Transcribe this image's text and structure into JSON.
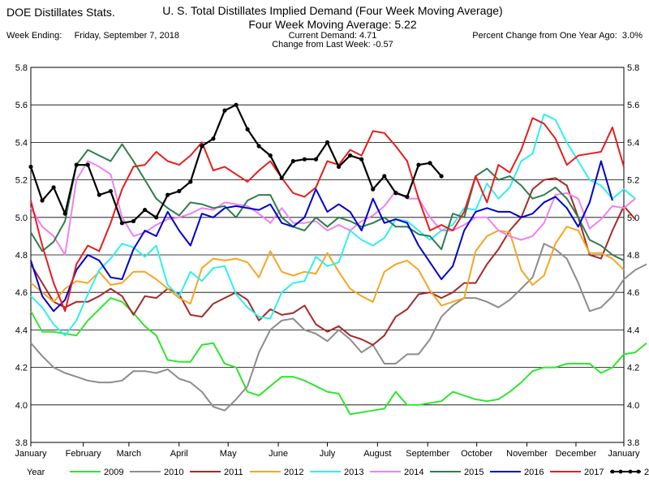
{
  "header": {
    "brand": "DOE Distillates Stats.",
    "title": "U. S. Total Distillates Implied Demand  (Four Week Moving Average)",
    "subtitle": "Four Week Moving Average:  5.22",
    "week_label": "Week Ending:",
    "week_value": "Friday, September 7, 2018",
    "current_demand": "Current Demand:  4.71",
    "change": "Change from Last Week: -0.57",
    "pct_label": "Percent Change from One Year Ago:",
    "pct_value": "3.0%"
  },
  "chart_data": {
    "type": "line",
    "x_unit": "week of year",
    "xlim": [
      1,
      53
    ],
    "ylim": [
      3.8,
      5.8
    ],
    "y_ticks": [
      "3.8",
      "4.0",
      "4.2",
      "4.4",
      "4.6",
      "4.8",
      "5.0",
      "5.2",
      "5.4",
      "5.6",
      "5.8"
    ],
    "x_ticks": [
      {
        "label": "January",
        "week": 1
      },
      {
        "label": "February",
        "week": 5.6
      },
      {
        "label": "March",
        "week": 9.6
      },
      {
        "label": "April",
        "week": 14
      },
      {
        "label": "May",
        "week": 18.3
      },
      {
        "label": "June",
        "week": 22.7
      },
      {
        "label": "July",
        "week": 27
      },
      {
        "label": "August",
        "week": 31.4
      },
      {
        "label": "September",
        "week": 35.8
      },
      {
        "label": "October",
        "week": 40.1
      },
      {
        "label": "November",
        "week": 44.5
      },
      {
        "label": "December",
        "week": 48.8
      },
      {
        "label": "January",
        "week": 53
      }
    ],
    "grid": "horizontal",
    "legend_position": "bottom",
    "legend_title": "Year",
    "series": [
      {
        "name": "2009",
        "color": "#2ee62e",
        "markers": false,
        "values": [
          4.5,
          4.39,
          4.39,
          4.38,
          4.37,
          4.45,
          4.51,
          4.57,
          4.55,
          4.49,
          4.42,
          4.37,
          4.24,
          4.23,
          4.23,
          4.32,
          4.33,
          4.22,
          4.2,
          4.07,
          4.05,
          4.1,
          4.15,
          4.15,
          4.13,
          4.1,
          4.07,
          4.06,
          3.95,
          3.96,
          3.97,
          3.98,
          4.07,
          4.0,
          4.0,
          4.01,
          4.02,
          4.07,
          4.05,
          4.03,
          4.02,
          4.03,
          4.07,
          4.12,
          4.18,
          4.2,
          4.2,
          4.22,
          4.22,
          4.22,
          4.17,
          4.2,
          4.27,
          4.28,
          4.33
        ]
      },
      {
        "name": "2010",
        "color": "#8c8c8c",
        "markers": false,
        "values": [
          4.33,
          4.26,
          4.2,
          4.17,
          4.15,
          4.13,
          4.12,
          4.12,
          4.13,
          4.18,
          4.18,
          4.17,
          4.19,
          4.14,
          4.12,
          4.07,
          3.99,
          3.97,
          4.03,
          4.1,
          4.28,
          4.4,
          4.45,
          4.46,
          4.4,
          4.38,
          4.34,
          4.4,
          4.35,
          4.28,
          4.32,
          4.22,
          4.22,
          4.27,
          4.27,
          4.35,
          4.47,
          4.53,
          4.57,
          4.57,
          4.55,
          4.52,
          4.56,
          4.62,
          4.68,
          4.86,
          4.83,
          4.78,
          4.65,
          4.5,
          4.52,
          4.58,
          4.67,
          4.72,
          4.75
        ]
      },
      {
        "name": "2011",
        "color": "#a52a2a",
        "markers": false,
        "values": [
          4.75,
          4.65,
          4.55,
          4.52,
          4.55,
          4.55,
          4.58,
          4.62,
          4.58,
          4.48,
          4.58,
          4.57,
          4.62,
          4.59,
          4.48,
          4.47,
          4.54,
          4.57,
          4.6,
          4.56,
          4.45,
          4.51,
          4.48,
          4.49,
          4.53,
          4.43,
          4.39,
          4.42,
          4.37,
          4.35,
          4.32,
          4.37,
          4.47,
          4.51,
          4.59,
          4.6,
          4.57,
          4.6,
          4.65,
          4.65,
          4.75,
          4.83,
          4.93,
          5.0,
          5.15,
          5.2,
          5.21,
          5.17,
          5.0,
          4.8,
          4.78,
          4.93,
          5.06,
          4.99
        ]
      },
      {
        "name": "2012",
        "color": "#f5a623",
        "markers": false,
        "values": [
          4.65,
          4.6,
          4.55,
          4.62,
          4.66,
          4.65,
          4.71,
          4.64,
          4.65,
          4.71,
          4.71,
          4.67,
          4.62,
          4.57,
          4.54,
          4.73,
          4.78,
          4.77,
          4.78,
          4.76,
          4.68,
          4.82,
          4.71,
          4.69,
          4.71,
          4.7,
          4.81,
          4.71,
          4.62,
          4.58,
          4.55,
          4.71,
          4.75,
          4.77,
          4.72,
          4.61,
          4.53,
          4.55,
          4.57,
          4.82,
          4.9,
          4.93,
          4.92,
          4.72,
          4.64,
          4.69,
          4.86,
          4.95,
          4.93,
          4.81,
          4.81,
          4.78,
          4.72
        ]
      },
      {
        "name": "2013",
        "color": "#2ef0f0",
        "markers": false,
        "values": [
          4.58,
          4.52,
          4.43,
          4.37,
          4.45,
          4.59,
          4.72,
          4.78,
          4.86,
          4.84,
          4.79,
          4.85,
          4.64,
          4.58,
          4.71,
          4.66,
          4.73,
          4.74,
          4.59,
          4.52,
          4.47,
          4.46,
          4.6,
          4.65,
          4.66,
          4.79,
          4.74,
          4.76,
          4.93,
          4.88,
          4.85,
          4.89,
          4.99,
          4.98,
          4.93,
          4.88,
          4.93,
          4.96,
          5.05,
          5.04,
          5.18,
          5.1,
          5.16,
          5.3,
          5.34,
          5.55,
          5.52,
          5.4,
          5.3,
          5.2,
          5.17,
          5.1,
          5.15,
          5.1
        ]
      },
      {
        "name": "2014",
        "color": "#ee82ee",
        "markers": false,
        "values": [
          5.05,
          4.95,
          4.9,
          4.8,
          5.2,
          5.3,
          5.27,
          5.23,
          5.0,
          4.9,
          4.92,
          4.96,
          4.99,
          5.0,
          5.02,
          5.05,
          5.04,
          5.08,
          5.07,
          5.06,
          5.02,
          4.97,
          5.05,
          4.97,
          4.97,
          4.98,
          4.93,
          4.96,
          4.93,
          4.98,
          5.01,
          5.06,
          5.14,
          5.1,
          5.1,
          5.0,
          4.93,
          4.93,
          4.96,
          5.0,
          5.0,
          4.93,
          4.9,
          4.88,
          4.9,
          4.97,
          5.12,
          5.13,
          5.1,
          4.94,
          4.99,
          5.06,
          5.05,
          5.1
        ]
      },
      {
        "name": "2015",
        "color": "#2e7d4f",
        "markers": false,
        "values": [
          4.92,
          4.82,
          4.87,
          4.98,
          5.28,
          5.36,
          5.33,
          5.3,
          5.39,
          5.3,
          5.2,
          5.1,
          5.05,
          5.01,
          5.08,
          5.07,
          5.05,
          5.06,
          5.0,
          5.09,
          5.12,
          5.12,
          5.0,
          4.95,
          4.93,
          5.0,
          4.95,
          5.0,
          4.98,
          4.95,
          4.97,
          5.0,
          4.95,
          4.95,
          4.91,
          4.9,
          4.83,
          5.02,
          5.0,
          5.22,
          5.26,
          5.2,
          5.22,
          5.17,
          5.1,
          5.12,
          5.16,
          5.1,
          5.0,
          4.88,
          4.85,
          4.8,
          4.77
        ]
      },
      {
        "name": "2016",
        "color": "#0000cd",
        "markers": false,
        "values": [
          4.77,
          4.58,
          4.5,
          4.56,
          4.72,
          4.8,
          4.77,
          4.68,
          4.67,
          4.83,
          4.93,
          4.9,
          5.03,
          4.93,
          4.85,
          5.02,
          5.0,
          5.05,
          5.06,
          5.05,
          5.04,
          5.07,
          4.97,
          4.95,
          5.0,
          5.15,
          5.03,
          5.07,
          5.03,
          4.93,
          5.1,
          4.97,
          4.99,
          4.97,
          4.85,
          4.76,
          4.67,
          4.74,
          4.93,
          5.03,
          5.05,
          5.03,
          5.03,
          5.0,
          5.02,
          5.08,
          5.11,
          5.05,
          4.95,
          5.08,
          5.3,
          5.09
        ]
      },
      {
        "name": "2017",
        "color": "#e81c1c",
        "markers": false,
        "values": [
          5.09,
          4.85,
          4.65,
          4.5,
          4.75,
          4.85,
          4.82,
          4.97,
          5.15,
          5.27,
          5.28,
          5.35,
          5.3,
          5.28,
          5.33,
          5.4,
          5.25,
          5.27,
          5.23,
          5.19,
          5.25,
          5.3,
          5.21,
          5.13,
          5.11,
          5.16,
          5.3,
          5.28,
          5.36,
          5.33,
          5.46,
          5.45,
          5.38,
          5.3,
          5.1,
          4.93,
          4.96,
          4.93,
          5.03,
          5.22,
          5.08,
          5.28,
          5.24,
          5.36,
          5.53,
          5.5,
          5.42,
          5.28,
          5.33,
          5.34,
          5.35,
          5.48,
          5.27
        ]
      },
      {
        "name": "2018",
        "color": "#000000",
        "markers": true,
        "values": [
          5.27,
          5.09,
          5.16,
          5.02,
          5.28,
          5.28,
          5.12,
          5.14,
          4.97,
          4.98,
          5.04,
          5.0,
          5.12,
          5.14,
          5.19,
          5.38,
          5.42,
          5.57,
          5.6,
          5.47,
          5.38,
          5.33,
          5.21,
          5.3,
          5.31,
          5.31,
          5.4,
          5.27,
          5.33,
          5.31,
          5.15,
          5.22,
          5.13,
          5.11,
          5.28,
          5.29,
          5.22
        ]
      }
    ]
  }
}
